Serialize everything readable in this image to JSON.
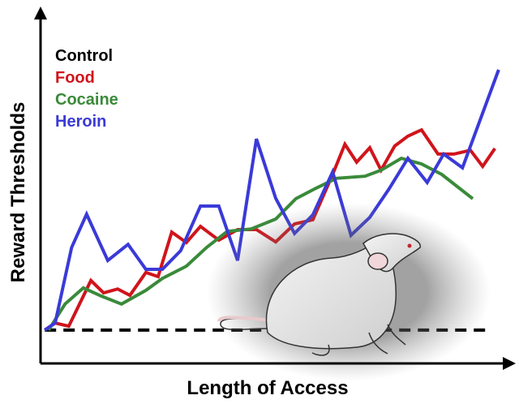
{
  "chart_data": {
    "type": "line",
    "xlabel": "Length of Access",
    "ylabel": "Reward Thresholds",
    "xlim": [
      0,
      100
    ],
    "ylim": [
      0,
      100
    ],
    "series": [
      {
        "name": "Control",
        "color": "#000000",
        "style": "dashed",
        "x": [
          0.9,
          95.7
        ],
        "values": [
          9.5,
          9.5
        ]
      },
      {
        "name": "Food",
        "color": "#d0141b",
        "style": "solid",
        "x": [
          0.9,
          3.1,
          6,
          10.7,
          13.4,
          16.4,
          19,
          22.4,
          25,
          27.9,
          31,
          34,
          37.9,
          41.9,
          45.9,
          50,
          54,
          57.9,
          62.1,
          64.7,
          67.2,
          70,
          72.4,
          75.3,
          78.1,
          81,
          84.5,
          87.9,
          91.4,
          94,
          96.6
        ],
        "values": [
          9.5,
          11.5,
          10.6,
          23.6,
          20.1,
          21.2,
          19.4,
          25.9,
          24.7,
          37.4,
          34.4,
          39,
          35.1,
          38.1,
          38.1,
          34.6,
          39.7,
          40.9,
          53.8,
          62.4,
          57.3,
          61.4,
          55,
          61.9,
          64.7,
          66.5,
          59.6,
          59.6,
          60.7,
          56.1,
          61.2
        ]
      },
      {
        "name": "Cocaine",
        "color": "#3a8a3a",
        "style": "solid",
        "x": [
          1.7,
          5.2,
          9.1,
          12.9,
          17.2,
          22.4,
          25.9,
          31,
          35.3,
          39.7,
          44.8,
          50,
          54.3,
          58.6,
          62.9,
          69,
          72.4,
          76.7,
          81,
          85.3,
          91.9
        ],
        "values": [
          9.5,
          16.9,
          21.5,
          19.2,
          16.9,
          20.8,
          24.2,
          27.7,
          33,
          37.6,
          38.3,
          41.1,
          46.9,
          49.9,
          52.7,
          53.3,
          55,
          58.4,
          56.8,
          53.8,
          46.9
        ]
      },
      {
        "name": "Heroin",
        "color": "#3a3ad8",
        "style": "solid",
        "x": [
          0.9,
          3.1,
          6.6,
          9.8,
          14.3,
          18.6,
          22.4,
          25.9,
          29.8,
          34,
          37.9,
          41.9,
          45.9,
          50,
          54,
          57.9,
          62.1,
          66,
          70,
          74.1,
          78.1,
          82.2,
          85.7,
          89.7,
          97.4
        ],
        "values": [
          9.5,
          11.5,
          33,
          42.5,
          29.3,
          33.9,
          26.8,
          26.8,
          32.1,
          44.8,
          44.8,
          29.3,
          63.9,
          47,
          37,
          42.3,
          54.5,
          36.5,
          41.6,
          49.7,
          58.4,
          51.5,
          59.6,
          55.7,
          83.6
        ]
      }
    ]
  }
}
